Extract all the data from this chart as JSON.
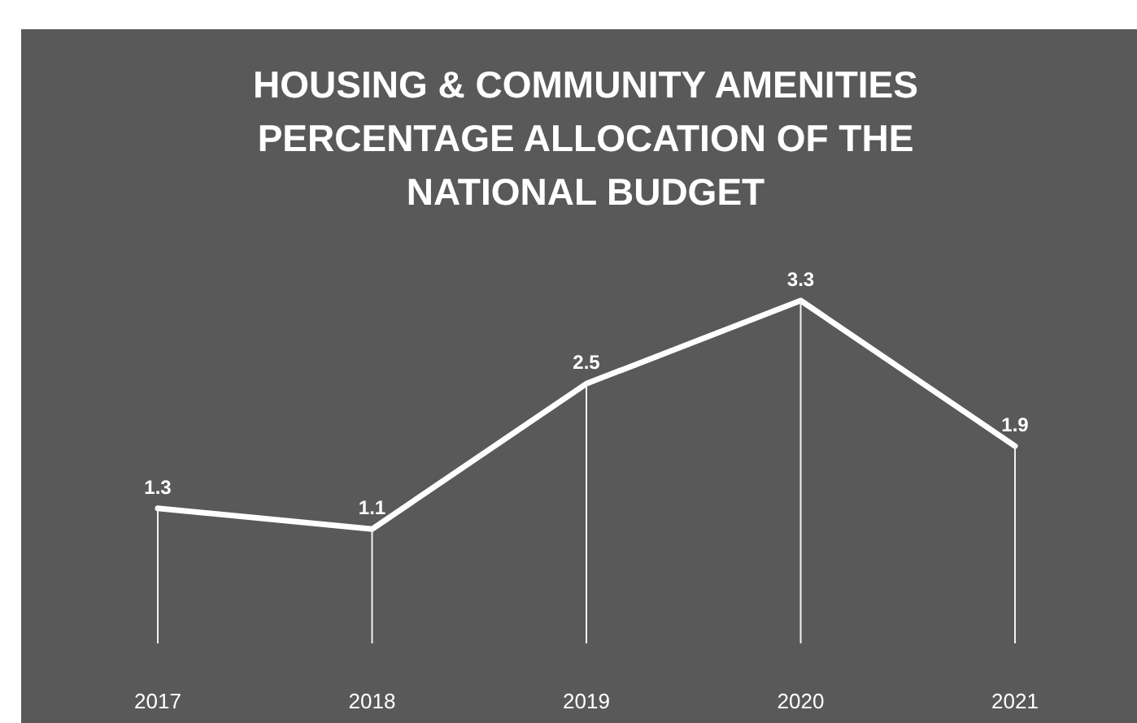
{
  "chart_data": {
    "type": "line",
    "title": "HOUSING & COMMUNITY AMENITIES PERCENTAGE ALLOCATION OF THE NATIONAL BUDGET",
    "categories": [
      "2017",
      "2018",
      "2019",
      "2020",
      "2021"
    ],
    "series": [
      {
        "color": "#ffffff",
        "marker": "none",
        "values": [
          1.3,
          1.1,
          2.5,
          3.3,
          1.9
        ],
        "value_labels": [
          "1.3",
          "1.1",
          "2.5",
          "3.3",
          "1.9"
        ]
      },
      {
        "type": "bar",
        "color": "#f2f2f2",
        "values": [
          1.3,
          1.1,
          2.5,
          3.3,
          1.9
        ]
      }
    ],
    "line_style": "solid",
    "tick_labels": "x"
  }
}
